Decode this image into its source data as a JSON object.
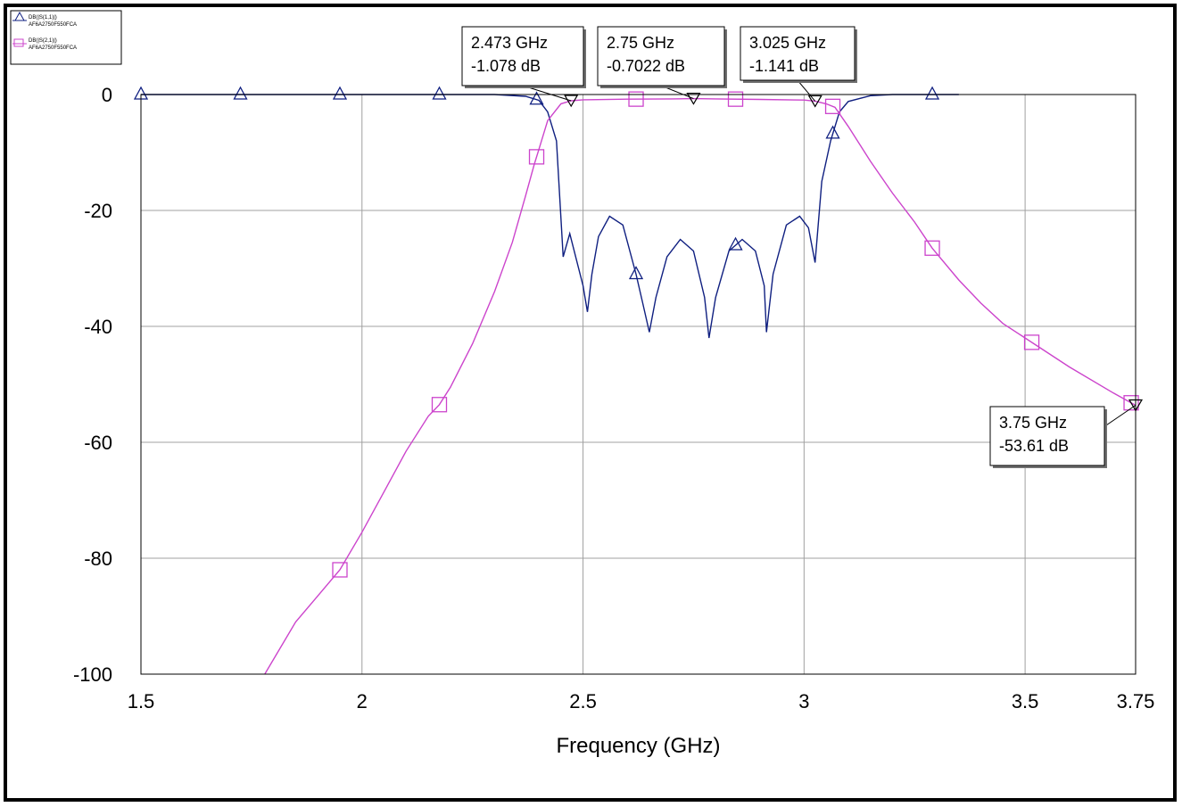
{
  "chart_data": {
    "type": "line",
    "xlabel": "Frequency (GHz)",
    "ylabel": "",
    "xlim": [
      1.5,
      3.75
    ],
    "ylim": [
      -100,
      0
    ],
    "xticks": [
      "1.5",
      "2",
      "2.5",
      "3",
      "3.5",
      "3.75"
    ],
    "yticks": [
      "0",
      "-20",
      "-40",
      "-60",
      "-80",
      "-100"
    ],
    "grid": true,
    "legend_position": "top-left",
    "series": [
      {
        "name": "DB(|S(1,1)|)",
        "subname": "AF6A2750F550FCA",
        "color": "#0f1f80",
        "marker": "triangle",
        "x": [
          1.5,
          2.0,
          2.3,
          2.37,
          2.4,
          2.42,
          2.44,
          2.455,
          2.47,
          2.5,
          2.51,
          2.52,
          2.535,
          2.56,
          2.59,
          2.62,
          2.635,
          2.65,
          2.665,
          2.69,
          2.72,
          2.75,
          2.775,
          2.785,
          2.8,
          2.83,
          2.86,
          2.89,
          2.91,
          2.915,
          2.93,
          2.96,
          2.99,
          3.01,
          3.025,
          3.04,
          3.06,
          3.08,
          3.1,
          3.15,
          3.2,
          3.35
        ],
        "y": [
          0,
          0,
          0,
          -0.3,
          -1.0,
          -3.0,
          -8.0,
          -28.0,
          -24.0,
          -33.0,
          -37.5,
          -31.0,
          -24.5,
          -21.0,
          -22.5,
          -31.0,
          -36.0,
          -41.0,
          -35.0,
          -28.0,
          -25.0,
          -27.0,
          -35.0,
          -42.0,
          -35.0,
          -27.0,
          -25.0,
          -27.0,
          -33.0,
          -41.0,
          -31.0,
          -22.5,
          -21.0,
          -23.0,
          -29.0,
          -15.0,
          -8.0,
          -3.0,
          -1.2,
          -0.2,
          0,
          0
        ]
      },
      {
        "name": "DB(|S(2,1)|)",
        "subname": "AF6A2750F550FCA",
        "color": "#cc44cc",
        "marker": "square",
        "x": [
          1.78,
          1.85,
          1.9,
          1.95,
          2.0,
          2.05,
          2.1,
          2.15,
          2.175,
          2.2,
          2.25,
          2.3,
          2.34,
          2.37,
          2.39,
          2.4,
          2.42,
          2.45,
          2.473,
          2.5,
          2.6,
          2.7,
          2.75,
          2.8,
          2.9,
          3.0,
          3.025,
          3.05,
          3.07,
          3.1,
          3.15,
          3.2,
          3.25,
          3.29,
          3.35,
          3.4,
          3.45,
          3.5,
          3.52,
          3.6,
          3.7,
          3.75
        ],
        "y": [
          -100,
          -91.0,
          -86.5,
          -82.0,
          -75.5,
          -68.5,
          -61.5,
          -55.5,
          -53.5,
          -50.5,
          -43.0,
          -34.0,
          -25.5,
          -17.5,
          -12.0,
          -9.5,
          -4.5,
          -1.6,
          -1.078,
          -0.9,
          -0.8,
          -0.75,
          -0.7022,
          -0.75,
          -0.85,
          -0.95,
          -1.141,
          -1.6,
          -2.2,
          -5.5,
          -11.5,
          -17.0,
          -22.0,
          -26.5,
          -32.0,
          -36.0,
          -39.5,
          -42.0,
          -43.0,
          -47.0,
          -51.5,
          -53.61
        ]
      }
    ],
    "markers": [
      {
        "label_freq": "2.473 GHz",
        "label_value": "-1.078 dB",
        "x": 2.473,
        "y": -1.078
      },
      {
        "label_freq": "2.75 GHz",
        "label_value": "-0.7022 dB",
        "x": 2.75,
        "y": -0.7022
      },
      {
        "label_freq": "3.025 GHz",
        "label_value": "-1.141 dB",
        "x": 3.025,
        "y": -1.141
      },
      {
        "label_freq": "3.75 GHz",
        "label_value": "-53.61 dB",
        "x": 3.75,
        "y": -53.61
      }
    ],
    "marker_x": {
      "triangle": [
        1.5,
        1.725,
        1.95,
        2.175,
        2.395,
        2.62,
        2.845,
        3.065,
        3.29,
        3.515,
        3.74
      ],
      "square": [
        1.95,
        2.175,
        2.395,
        2.62,
        2.845,
        3.065,
        3.29,
        3.515,
        3.74
      ]
    }
  }
}
